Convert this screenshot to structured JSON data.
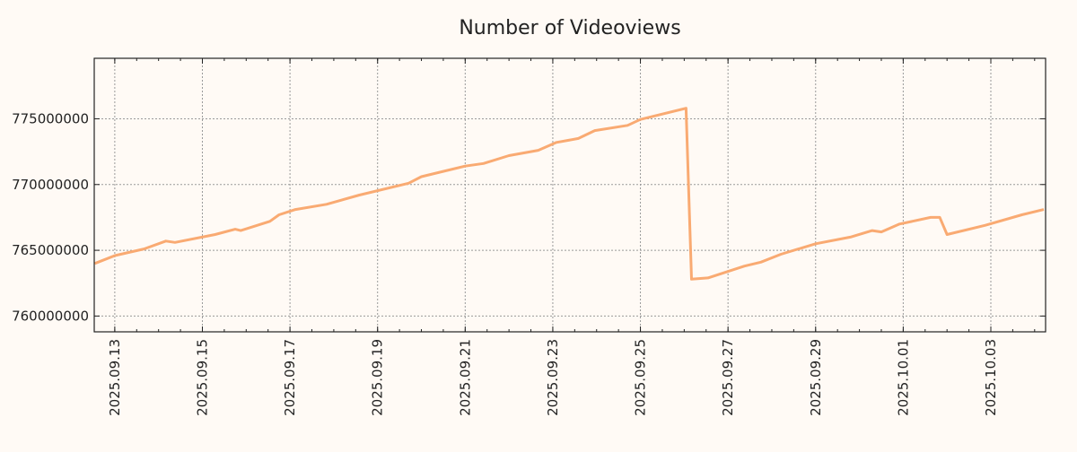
{
  "chart_data": {
    "type": "line",
    "title": "Number of Videoviews",
    "xlabel": "",
    "ylabel": "",
    "grid": true,
    "legend": "none",
    "colors": {
      "line": "#f9aa72",
      "background": "#fffaf5",
      "grid": "#999999"
    },
    "xlim": [
      "2025-09-12T12:45",
      "2025-10-04T06:00"
    ],
    "ylim": [
      758800000,
      779600000
    ],
    "yticks": [
      760000000,
      765000000,
      770000000,
      775000000
    ],
    "ytick_labels": [
      "760000000",
      "765000000",
      "770000000",
      "775000000"
    ],
    "xticks": [
      "2025-09-13",
      "2025-09-15",
      "2025-09-17",
      "2025-09-19",
      "2025-09-21",
      "2025-09-23",
      "2025-09-25",
      "2025-09-27",
      "2025-09-29",
      "2025-10-01",
      "2025-10-03"
    ],
    "xtick_labels": [
      "2025.09.13",
      "2025.09.15",
      "2025.09.17",
      "2025.09.19",
      "2025.09.21",
      "2025.09.23",
      "2025.09.25",
      "2025.09.27",
      "2025.09.29",
      "2025.10.01",
      "2025.10.03"
    ],
    "series": [
      {
        "name": "Number of Videoviews",
        "x": [
          "2025-09-12T13:00",
          "2025-09-13T00:00",
          "2025-09-13T16:00",
          "2025-09-14T04:00",
          "2025-09-14T09:00",
          "2025-09-15T07:00",
          "2025-09-15T18:00",
          "2025-09-15T21:00",
          "2025-09-16T13:00",
          "2025-09-16T18:00",
          "2025-09-17T03:00",
          "2025-09-17T20:00",
          "2025-09-18T14:00",
          "2025-09-19T17:00",
          "2025-09-20T00:00",
          "2025-09-21T00:00",
          "2025-09-21T10:00",
          "2025-09-22T00:00",
          "2025-09-22T16:00",
          "2025-09-23T02:00",
          "2025-09-23T14:00",
          "2025-09-23T23:00",
          "2025-09-24T17:00",
          "2025-09-25T00:00",
          "2025-09-26T01:00",
          "2025-09-26T04:00",
          "2025-09-26T13:00",
          "2025-09-27T09:00",
          "2025-09-27T18:00",
          "2025-09-28T05:00",
          "2025-09-29T00:00",
          "2025-09-29T19:00",
          "2025-09-30T07:00",
          "2025-09-30T12:00",
          "2025-09-30T22:00",
          "2025-10-01T15:00",
          "2025-10-01T20:00",
          "2025-10-02T00:00",
          "2025-10-02T21:00",
          "2025-10-03T17:00",
          "2025-10-04T05:00"
        ],
        "values": [
          764000000,
          764600000,
          765100000,
          765700000,
          765600000,
          766200000,
          766600000,
          766500000,
          767200000,
          767700000,
          768100000,
          768500000,
          769200000,
          770100000,
          770600000,
          771400000,
          771600000,
          772200000,
          772600000,
          773200000,
          773500000,
          774100000,
          774500000,
          774950000,
          775800000,
          762800000,
          762900000,
          763800000,
          764100000,
          764700000,
          765500000,
          766000000,
          766500000,
          766400000,
          767000000,
          767500000,
          767500000,
          766200000,
          766900000,
          767700000,
          768100000
        ]
      }
    ]
  }
}
